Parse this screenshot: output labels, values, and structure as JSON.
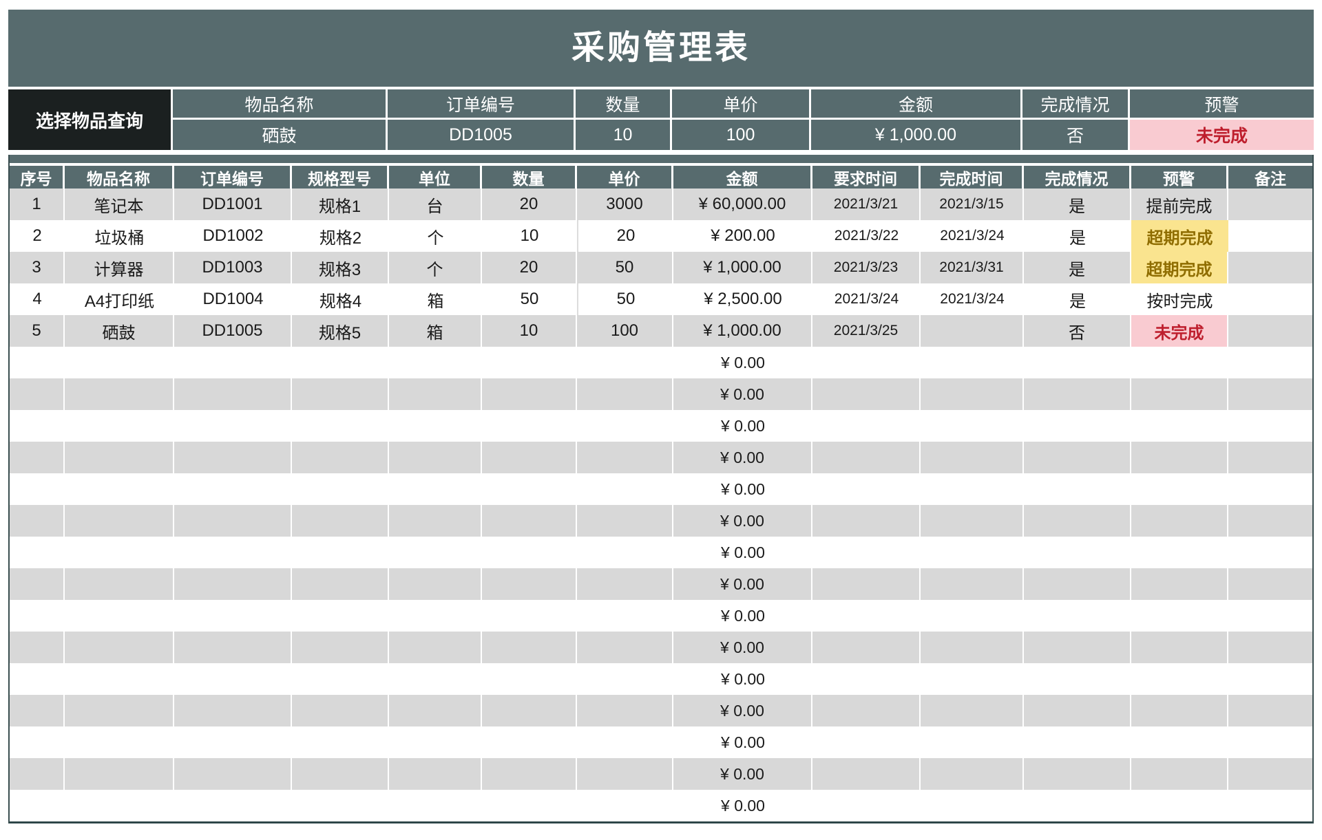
{
  "title": "采购管理表",
  "query": {
    "label": "选择物品查询",
    "columns": [
      "物品名称",
      "订单编号",
      "数量",
      "单价",
      "金额",
      "完成情况",
      "预警"
    ],
    "values": [
      "硒鼓",
      "DD1005",
      "10",
      "100",
      "¥ 1,000.00",
      "否",
      "未完成"
    ]
  },
  "table": {
    "headers": [
      "序号",
      "物品名称",
      "订单编号",
      "规格型号",
      "单位",
      "数量",
      "单价",
      "金额",
      "要求时间",
      "完成时间",
      "完成情况",
      "预警",
      "备注"
    ],
    "rows": [
      {
        "cells": [
          "1",
          "笔记本",
          "DD1001",
          "规格1",
          "台",
          "20",
          "3000",
          "¥ 60,000.00",
          "2021/3/21",
          "2021/3/15",
          "是",
          "提前完成",
          ""
        ],
        "warn": "none"
      },
      {
        "cells": [
          "2",
          "垃圾桶",
          "DD1002",
          "规格2",
          "个",
          "10",
          "20",
          "¥ 200.00",
          "2021/3/22",
          "2021/3/24",
          "是",
          "超期完成",
          ""
        ],
        "warn": "overdue"
      },
      {
        "cells": [
          "3",
          "计算器",
          "DD1003",
          "规格3",
          "个",
          "20",
          "50",
          "¥ 1,000.00",
          "2021/3/23",
          "2021/3/31",
          "是",
          "超期完成",
          ""
        ],
        "warn": "overdue"
      },
      {
        "cells": [
          "4",
          "A4打印纸",
          "DD1004",
          "规格4",
          "箱",
          "50",
          "50",
          "¥ 2,500.00",
          "2021/3/24",
          "2021/3/24",
          "是",
          "按时完成",
          ""
        ],
        "warn": "none"
      },
      {
        "cells": [
          "5",
          "硒鼓",
          "DD1005",
          "规格5",
          "箱",
          "10",
          "100",
          "¥ 1,000.00",
          "2021/3/25",
          "",
          "否",
          "未完成",
          ""
        ],
        "warn": "incomplete"
      }
    ],
    "empty_row_count": 15,
    "empty_amount": "¥ 0.00"
  },
  "colors": {
    "slate_header": "#576B6E",
    "black_label": "#1B2020",
    "stripe_gray": "#D8D8D8",
    "warn_yellow_bg": "#FAE48F",
    "warn_yellow_text": "#8F6D00",
    "warn_pink_bg": "#F9CBD1",
    "warn_red_text": "#BE1E2D",
    "outer_border": "#2F4749"
  }
}
